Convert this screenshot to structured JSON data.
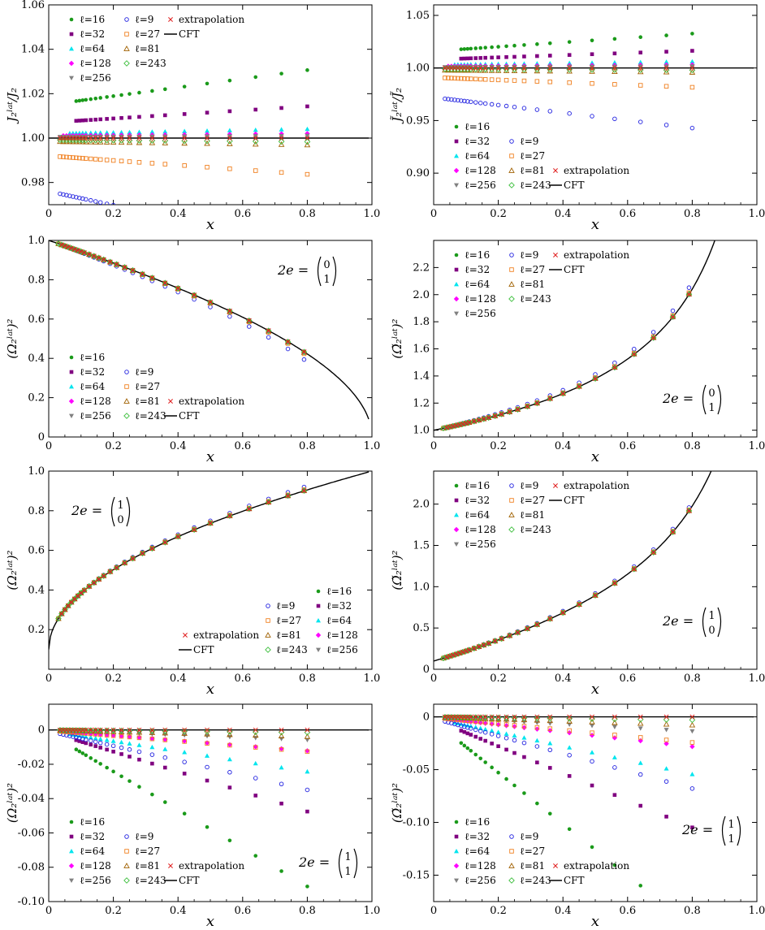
{
  "colors": {
    "l16": "#1a9a1a",
    "l32": "#800080",
    "l64": "#00e5ee",
    "l128": "#ff00ff",
    "l256": "#808080",
    "l9": "#2020e0",
    "l27": "#f08020",
    "l81": "#a06000",
    "l243": "#40c040",
    "extrap": "#e02020",
    "cft": "#000000"
  },
  "legend_labels": {
    "l16": "ℓ=16",
    "l32": "ℓ=32",
    "l64": "ℓ=64",
    "l128": "ℓ=128",
    "l256": "ℓ=256",
    "l9": "ℓ=9",
    "l27": "ℓ=27",
    "l81": "ℓ=81",
    "l243": "ℓ=243",
    "extrap": "extrapolation",
    "cft": "CFT"
  },
  "chart_data": [
    {
      "id": "p1",
      "type": "scatter",
      "xlabel": "x",
      "ylabel": "J₂ˡᵃᵗ/J₂",
      "xlim": [
        0,
        1
      ],
      "ylim": [
        0.97,
        1.06
      ],
      "xticks": [
        "0",
        "0.2",
        "0.4",
        "0.6",
        "0.8",
        "1.0"
      ],
      "yticks": [
        0.98,
        1.0,
        1.02,
        1.04,
        1.06
      ],
      "ytick_labels": [
        "0.98",
        "1.00",
        "1.02",
        "1.04",
        "1.06"
      ],
      "annotation": "",
      "legend": "top-left",
      "cft": "one",
      "series": {
        "l16": 0.015,
        "l32": 0.007,
        "l64": 0.002,
        "l128": 0.001,
        "l256": 0.0005,
        "l9": -0.024,
        "l27": -0.008,
        "l81": -0.0015,
        "l243": -0.0008,
        "extrap": 0
      }
    },
    {
      "id": "p2",
      "type": "scatter",
      "xlabel": "x",
      "ylabel": "J̃₂ˡᵃᵗ/J̃₂",
      "xlim": [
        0,
        1
      ],
      "ylim": [
        0.87,
        1.06
      ],
      "xticks": [
        "0",
        "0.2",
        "0.4",
        "0.6",
        "0.8",
        "1.0"
      ],
      "yticks": [
        0.9,
        0.95,
        1.0,
        1.05
      ],
      "ytick_labels": [
        "0.90",
        "0.95",
        "1.00",
        "1.05"
      ],
      "annotation": "",
      "legend": "bottom-left",
      "cft": "one",
      "series": {
        "l16": 0.016,
        "l32": 0.008,
        "l64": 0.003,
        "l128": 0.0015,
        "l256": 0.0008,
        "l9": -0.028,
        "l27": -0.009,
        "l81": -0.002,
        "l243": -0.001,
        "extrap": 0
      }
    },
    {
      "id": "p3",
      "type": "scatter",
      "xlabel": "x",
      "ylabel": "(Ω₂ˡᵃᵗ)²",
      "xlim": [
        0,
        1
      ],
      "ylim": [
        0,
        1.0
      ],
      "xticks": [
        "0",
        "0.2",
        "0.4",
        "0.6",
        "0.8",
        "1.0"
      ],
      "yticks": [
        0,
        0.2,
        0.4,
        0.6,
        0.8,
        1.0
      ],
      "ytick_labels": [
        "0",
        "0.2",
        "0.4",
        "0.6",
        "0.8",
        "1.0"
      ],
      "annotation": "2e = (0 1)ᵀ",
      "ann_top": "0",
      "ann_bot": "1",
      "legend": "bottom-left",
      "cft": "sqrt_dec",
      "series": {
        "l16": 0,
        "l32": 0,
        "l64": 0,
        "l128": 0,
        "l256": 0,
        "l9": -0.04,
        "l27": -0.01,
        "l81": -0.003,
        "l243": -0.001,
        "extrap": 0
      }
    },
    {
      "id": "p4",
      "type": "scatter",
      "xlabel": "x",
      "ylabel": "(Ω̃₂ˡᵃᵗ)²",
      "xlim": [
        0,
        1
      ],
      "ylim": [
        0.95,
        2.4
      ],
      "xticks": [
        "0",
        "0.2",
        "0.4",
        "0.6",
        "0.8",
        "1.0"
      ],
      "yticks": [
        1.0,
        1.2,
        1.4,
        1.6,
        1.8,
        2.0,
        2.2
      ],
      "ytick_labels": [
        "1.0",
        "1.2",
        "1.4",
        "1.6",
        "1.8",
        "2.0",
        "2.2"
      ],
      "annotation": "2e = (0 1)ᵀ",
      "ann_top": "0",
      "ann_bot": "1",
      "legend": "top-left",
      "cft": "inv_sqrt",
      "series": {
        "l16": 0,
        "l32": 0,
        "l64": 0,
        "l128": 0,
        "l256": 0,
        "l9": 0.05,
        "l27": 0.012,
        "l81": 0.004,
        "l243": 0.001,
        "extrap": 0
      }
    },
    {
      "id": "p5",
      "type": "scatter",
      "xlabel": "x",
      "ylabel": "(Ω₂ˡᵃᵗ)²",
      "xlim": [
        0,
        1
      ],
      "ylim": [
        0,
        1.0
      ],
      "xticks": [
        "0",
        "0.2",
        "0.4",
        "0.6",
        "0.8",
        "1.0"
      ],
      "yticks": [
        0.2,
        0.4,
        0.6,
        0.8,
        1.0
      ],
      "ytick_labels": [
        "0.2",
        "0.4",
        "0.6",
        "0.8",
        "1.0"
      ],
      "annotation": "2e = (1 0)ᵀ",
      "ann_top": "1",
      "ann_bot": "0",
      "legend": "bottom-right",
      "cft": "sqrt_inc",
      "series": {
        "l16": 0,
        "l32": 0,
        "l64": 0,
        "l128": 0,
        "l256": 0,
        "l9": 0.02,
        "l27": 0.006,
        "l81": 0.002,
        "l243": 0.001,
        "extrap": 0
      }
    },
    {
      "id": "p6",
      "type": "scatter",
      "xlabel": "x",
      "ylabel": "(Ω̃₂ˡᵃᵗ)²",
      "xlim": [
        0,
        1
      ],
      "ylim": [
        0,
        2.4
      ],
      "xticks": [
        "0",
        "0.2",
        "0.4",
        "0.6",
        "0.8",
        "1.0"
      ],
      "yticks": [
        0,
        0.5,
        1.0,
        1.5,
        2.0
      ],
      "ytick_labels": [
        "0",
        "0.5",
        "1.0",
        "1.5",
        "2.0"
      ],
      "annotation": "2e = (1 0)ᵀ",
      "ann_top": "1",
      "ann_bot": "0",
      "legend": "top-left",
      "cft": "ratio",
      "series": {
        "l16": 0,
        "l32": 0,
        "l64": 0,
        "l128": 0,
        "l256": 0,
        "l9": 0.04,
        "l27": 0.01,
        "l81": 0.003,
        "l243": 0.001,
        "extrap": 0
      }
    },
    {
      "id": "p7",
      "type": "scatter",
      "xlabel": "x",
      "ylabel": "(Ω₂ˡᵃᵗ)²",
      "xlim": [
        0,
        1
      ],
      "ylim": [
        -0.1,
        0.015
      ],
      "xticks": [
        "0",
        "0.2",
        "0.4",
        "0.6",
        "0.8",
        "1.0"
      ],
      "yticks": [
        -0.1,
        -0.08,
        -0.06,
        -0.04,
        -0.02,
        0
      ],
      "ytick_labels": [
        "-0.10",
        "-0.08",
        "-0.06",
        "-0.04",
        "-0.02",
        "0"
      ],
      "annotation": "2e = (1 1)ᵀ",
      "ann_top": "1",
      "ann_bot": "1",
      "legend": "bottom-left",
      "cft": "zero",
      "series": {
        "l16": -0.094,
        "l32": -0.049,
        "l64": -0.025,
        "l128": -0.0125,
        "l256": -0.006,
        "l9": -0.036,
        "l27": -0.013,
        "l81": -0.004,
        "l243": -0.0015,
        "extrap": 0
      }
    },
    {
      "id": "p8",
      "type": "scatter",
      "xlabel": "x",
      "ylabel": "(Ω̃₂ˡᵃᵗ)²",
      "xlim": [
        0,
        1
      ],
      "ylim": [
        -0.175,
        0.012
      ],
      "xticks": [
        "0",
        "0.2",
        "0.4",
        "0.6",
        "0.8",
        "1.0"
      ],
      "yticks": [
        -0.15,
        -0.1,
        -0.05,
        0
      ],
      "ytick_labels": [
        "-0.15",
        "-0.10",
        "-0.05",
        "0"
      ],
      "annotation": "2e = (1 1)ᵀ",
      "ann_top": "1",
      "ann_bot": "1",
      "legend": "bottom-left",
      "cft": "zero",
      "series": {
        "l16": -0.205,
        "l32": -0.108,
        "l64": -0.056,
        "l128": -0.029,
        "l256": -0.014,
        "l9": -0.07,
        "l27": -0.025,
        "l81": -0.008,
        "l243": -0.003,
        "extrap": 0
      }
    }
  ]
}
